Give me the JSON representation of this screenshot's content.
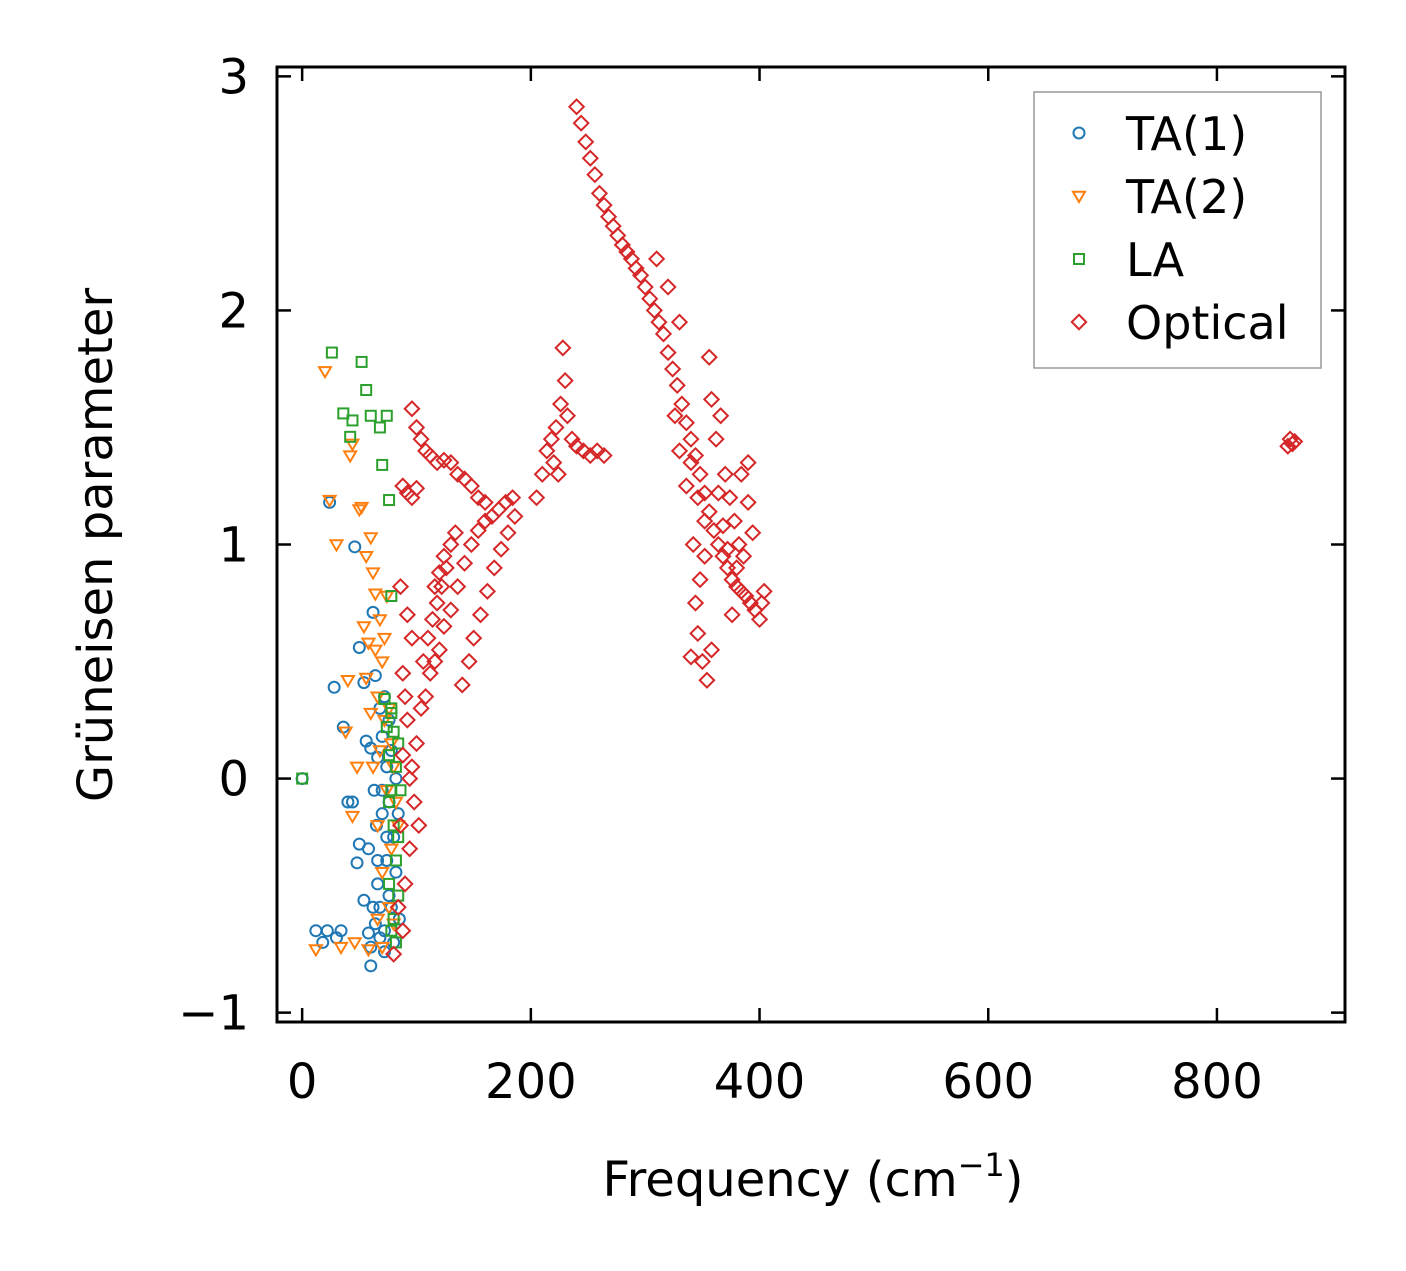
{
  "chart_data": {
    "type": "scatter",
    "title": "",
    "xlabel": "Frequency (cm",
    "xlabel_sup": "−1",
    "xlabel_suffix": ")",
    "ylabel": "Grüneisen parameter",
    "xlim": [
      -22,
      912
    ],
    "ylim": [
      -1.04,
      3.04
    ],
    "xticks": [
      0,
      200,
      400,
      600,
      800
    ],
    "yticks": [
      -1,
      0,
      1,
      2,
      3
    ],
    "xtick_labels": [
      "0",
      "200",
      "400",
      "600",
      "800"
    ],
    "ytick_labels": [
      "−1",
      "0",
      "1",
      "2",
      "3"
    ],
    "grid": false,
    "legend_position": "top-right",
    "series": [
      {
        "name": "TA(1)",
        "marker": "circle",
        "color": "#1f77b4",
        "points": [
          [
            0,
            0
          ],
          [
            12,
            -0.65
          ],
          [
            18,
            -0.7
          ],
          [
            22,
            -0.65
          ],
          [
            24,
            1.18
          ],
          [
            30,
            -0.68
          ],
          [
            34,
            -0.65
          ],
          [
            28,
            0.39
          ],
          [
            36,
            0.22
          ],
          [
            40,
            -0.1
          ],
          [
            44,
            -0.1
          ],
          [
            46,
            0.99
          ],
          [
            48,
            -0.36
          ],
          [
            50,
            0.56
          ],
          [
            50,
            -0.28
          ],
          [
            54,
            0.41
          ],
          [
            54,
            -0.52
          ],
          [
            56,
            0.16
          ],
          [
            58,
            -0.3
          ],
          [
            60,
            0.13
          ],
          [
            60,
            -0.8
          ],
          [
            62,
            0.71
          ],
          [
            63,
            -0.05
          ],
          [
            64,
            0.44
          ],
          [
            65,
            -0.2
          ],
          [
            66,
            0.09
          ],
          [
            66,
            -0.45
          ],
          [
            68,
            0.3
          ],
          [
            68,
            -0.55
          ],
          [
            70,
            -0.15
          ],
          [
            70,
            0.18
          ],
          [
            72,
            0.35
          ],
          [
            72,
            -0.65
          ],
          [
            74,
            -0.35
          ],
          [
            74,
            0.05
          ],
          [
            76,
            0.25
          ],
          [
            76,
            -0.1
          ],
          [
            78,
            -0.55
          ],
          [
            78,
            0.12
          ],
          [
            80,
            -0.25
          ],
          [
            80,
            -0.7
          ],
          [
            82,
            -0.4
          ],
          [
            82,
            0.0
          ],
          [
            84,
            -0.15
          ],
          [
            85,
            -0.6
          ],
          [
            60,
            -0.72
          ],
          [
            64,
            -0.62
          ],
          [
            68,
            -0.68
          ],
          [
            72,
            -0.74
          ],
          [
            76,
            -0.5
          ],
          [
            58,
            -0.66
          ],
          [
            62,
            -0.55
          ],
          [
            66,
            -0.35
          ],
          [
            70,
            -0.05
          ],
          [
            74,
            -0.25
          ]
        ]
      },
      {
        "name": "TA(2)",
        "marker": "triangle-down",
        "color": "#ff7f0e",
        "points": [
          [
            12,
            -0.73
          ],
          [
            20,
            1.74
          ],
          [
            24,
            1.19
          ],
          [
            30,
            1.0
          ],
          [
            34,
            -0.72
          ],
          [
            38,
            0.2
          ],
          [
            40,
            0.42
          ],
          [
            42,
            1.38
          ],
          [
            44,
            1.43
          ],
          [
            44,
            -0.16
          ],
          [
            46,
            -0.7
          ],
          [
            48,
            0.05
          ],
          [
            50,
            1.15
          ],
          [
            52,
            1.16
          ],
          [
            54,
            0.65
          ],
          [
            56,
            0.95
          ],
          [
            56,
            0.43
          ],
          [
            58,
            0.58
          ],
          [
            58,
            -0.73
          ],
          [
            60,
            1.03
          ],
          [
            60,
            0.28
          ],
          [
            62,
            0.88
          ],
          [
            62,
            0.05
          ],
          [
            64,
            0.79
          ],
          [
            64,
            0.55
          ],
          [
            66,
            0.35
          ],
          [
            66,
            -0.2
          ],
          [
            68,
            0.68
          ],
          [
            68,
            0.12
          ],
          [
            70,
            0.5
          ],
          [
            70,
            -0.4
          ],
          [
            72,
            0.6
          ],
          [
            72,
            0.25
          ],
          [
            74,
            0.78
          ],
          [
            74,
            -0.05
          ],
          [
            76,
            0.3
          ],
          [
            76,
            -0.55
          ],
          [
            78,
            0.15
          ],
          [
            78,
            -0.3
          ],
          [
            80,
            0.05
          ],
          [
            80,
            -0.62
          ],
          [
            82,
            -0.1
          ],
          [
            84,
            -0.2
          ],
          [
            66,
            -0.6
          ],
          [
            70,
            -0.72
          ]
        ]
      },
      {
        "name": "LA",
        "marker": "square",
        "color": "#2ca02c",
        "points": [
          [
            0,
            0
          ],
          [
            26,
            1.82
          ],
          [
            36,
            1.56
          ],
          [
            42,
            1.46
          ],
          [
            44,
            1.53
          ],
          [
            52,
            1.78
          ],
          [
            56,
            1.66
          ],
          [
            60,
            1.55
          ],
          [
            68,
            1.5
          ],
          [
            70,
            1.34
          ],
          [
            74,
            1.55
          ],
          [
            76,
            1.19
          ],
          [
            78,
            0.78
          ],
          [
            72,
            0.34
          ],
          [
            74,
            0.22
          ],
          [
            76,
            0.1
          ],
          [
            78,
            0.3
          ],
          [
            78,
            -0.05
          ],
          [
            80,
            0.2
          ],
          [
            80,
            -0.2
          ],
          [
            82,
            0.05
          ],
          [
            82,
            -0.35
          ],
          [
            84,
            -0.5
          ],
          [
            84,
            0.15
          ],
          [
            80,
            -0.6
          ],
          [
            78,
            -0.65
          ],
          [
            76,
            -0.45
          ],
          [
            82,
            -0.7
          ],
          [
            84,
            -0.25
          ],
          [
            86,
            -0.05
          ],
          [
            76,
            -0.1
          ],
          [
            78,
            0.28
          ]
        ]
      },
      {
        "name": "Optical",
        "marker": "diamond",
        "color": "#d62728",
        "points": [
          [
            80,
            -0.75
          ],
          [
            84,
            -0.55
          ],
          [
            86,
            -0.2
          ],
          [
            88,
            0.1
          ],
          [
            90,
            0.35
          ],
          [
            92,
            0.25
          ],
          [
            96,
            0.05
          ],
          [
            100,
            0.15
          ],
          [
            104,
            0.3
          ],
          [
            108,
            0.35
          ],
          [
            112,
            0.45
          ],
          [
            116,
            0.5
          ],
          [
            120,
            0.55
          ],
          [
            124,
            0.65
          ],
          [
            130,
            0.72
          ],
          [
            136,
            0.82
          ],
          [
            142,
            0.92
          ],
          [
            148,
            1.0
          ],
          [
            154,
            1.06
          ],
          [
            160,
            1.1
          ],
          [
            166,
            1.12
          ],
          [
            172,
            1.15
          ],
          [
            178,
            1.18
          ],
          [
            184,
            1.2
          ],
          [
            106,
            0.5
          ],
          [
            110,
            0.6
          ],
          [
            114,
            0.68
          ],
          [
            118,
            0.75
          ],
          [
            122,
            0.82
          ],
          [
            126,
            0.9
          ],
          [
            130,
            1.0
          ],
          [
            134,
            1.05
          ],
          [
            96,
            1.58
          ],
          [
            100,
            1.5
          ],
          [
            104,
            1.45
          ],
          [
            108,
            1.4
          ],
          [
            112,
            1.38
          ],
          [
            118,
            1.35
          ],
          [
            124,
            1.36
          ],
          [
            130,
            1.35
          ],
          [
            136,
            1.3
          ],
          [
            142,
            1.28
          ],
          [
            148,
            1.25
          ],
          [
            154,
            1.2
          ],
          [
            160,
            1.18
          ],
          [
            88,
            1.25
          ],
          [
            92,
            1.22
          ],
          [
            96,
            1.2
          ],
          [
            100,
            1.24
          ],
          [
            116,
            0.82
          ],
          [
            120,
            0.88
          ],
          [
            124,
            0.95
          ],
          [
            86,
            0.82
          ],
          [
            92,
            0.7
          ],
          [
            96,
            0.6
          ],
          [
            88,
            0.45
          ],
          [
            140,
            0.4
          ],
          [
            146,
            0.5
          ],
          [
            150,
            0.6
          ],
          [
            156,
            0.7
          ],
          [
            162,
            0.8
          ],
          [
            168,
            0.9
          ],
          [
            174,
            0.98
          ],
          [
            180,
            1.05
          ],
          [
            186,
            1.12
          ],
          [
            94,
            0.0
          ],
          [
            98,
            -0.1
          ],
          [
            102,
            -0.2
          ],
          [
            90,
            -0.45
          ],
          [
            94,
            -0.3
          ],
          [
            88,
            -0.65
          ],
          [
            205,
            1.2
          ],
          [
            210,
            1.3
          ],
          [
            214,
            1.4
          ],
          [
            218,
            1.45
          ],
          [
            222,
            1.5
          ],
          [
            226,
            1.6
          ],
          [
            228,
            1.84
          ],
          [
            230,
            1.7
          ],
          [
            232,
            1.55
          ],
          [
            236,
            1.45
          ],
          [
            240,
            1.42
          ],
          [
            246,
            1.4
          ],
          [
            252,
            1.38
          ],
          [
            258,
            1.4
          ],
          [
            264,
            1.38
          ],
          [
            220,
            1.35
          ],
          [
            224,
            1.3
          ],
          [
            240,
            2.87
          ],
          [
            244,
            2.8
          ],
          [
            248,
            2.72
          ],
          [
            252,
            2.65
          ],
          [
            256,
            2.58
          ],
          [
            260,
            2.5
          ],
          [
            264,
            2.45
          ],
          [
            268,
            2.4
          ],
          [
            272,
            2.36
          ],
          [
            276,
            2.32
          ],
          [
            280,
            2.28
          ],
          [
            284,
            2.25
          ],
          [
            288,
            2.22
          ],
          [
            292,
            2.18
          ],
          [
            296,
            2.15
          ],
          [
            300,
            2.1
          ],
          [
            304,
            2.05
          ],
          [
            308,
            2.0
          ],
          [
            312,
            1.95
          ],
          [
            316,
            1.9
          ],
          [
            320,
            1.82
          ],
          [
            324,
            1.75
          ],
          [
            328,
            1.68
          ],
          [
            332,
            1.6
          ],
          [
            336,
            1.52
          ],
          [
            340,
            1.45
          ],
          [
            344,
            1.38
          ],
          [
            348,
            1.3
          ],
          [
            352,
            1.22
          ],
          [
            356,
            1.14
          ],
          [
            360,
            1.06
          ],
          [
            364,
            1.0
          ],
          [
            368,
            0.95
          ],
          [
            372,
            0.9
          ],
          [
            376,
            0.85
          ],
          [
            380,
            0.82
          ],
          [
            384,
            0.8
          ],
          [
            388,
            0.78
          ],
          [
            392,
            0.75
          ],
          [
            396,
            0.72
          ],
          [
            400,
            0.68
          ],
          [
            402,
            0.75
          ],
          [
            404,
            0.8
          ],
          [
            310,
            2.22
          ],
          [
            320,
            2.1
          ],
          [
            330,
            1.95
          ],
          [
            340,
            1.35
          ],
          [
            346,
            1.2
          ],
          [
            352,
            1.1
          ],
          [
            356,
            1.8
          ],
          [
            358,
            1.62
          ],
          [
            362,
            1.45
          ],
          [
            366,
            1.55
          ],
          [
            370,
            1.3
          ],
          [
            374,
            1.2
          ],
          [
            378,
            1.1
          ],
          [
            382,
            1.0
          ],
          [
            386,
            0.95
          ],
          [
            390,
            1.18
          ],
          [
            394,
            1.05
          ],
          [
            340,
            0.52
          ],
          [
            346,
            0.62
          ],
          [
            350,
            0.5
          ],
          [
            354,
            0.42
          ],
          [
            358,
            0.55
          ],
          [
            344,
            0.75
          ],
          [
            348,
            0.85
          ],
          [
            352,
            0.95
          ],
          [
            336,
            1.25
          ],
          [
            342,
            1.0
          ],
          [
            330,
            1.4
          ],
          [
            326,
            1.55
          ],
          [
            390,
            1.35
          ],
          [
            384,
            1.3
          ],
          [
            364,
            1.22
          ],
          [
            368,
            1.08
          ],
          [
            372,
            0.98
          ],
          [
            376,
            0.7
          ],
          [
            380,
            0.9
          ],
          [
            862,
            1.42
          ],
          [
            864,
            1.45
          ],
          [
            866,
            1.43
          ],
          [
            868,
            1.44
          ]
        ]
      }
    ]
  }
}
